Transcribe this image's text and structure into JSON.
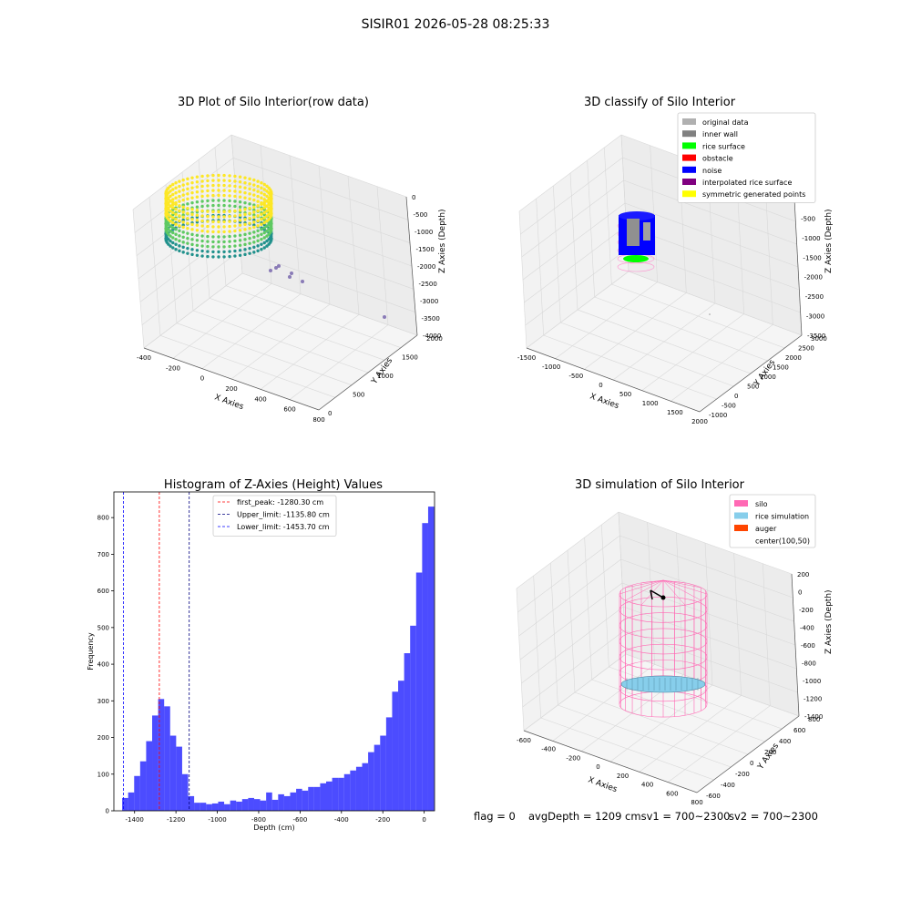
{
  "figure_title": "SISIR01 2026-05-28 08:25:33",
  "footer": {
    "flag": "flag = 0",
    "avg_depth": "avgDepth = 1209 cmsv1 = 700~2300",
    "sv2": "sv2 = 700~2300"
  },
  "chart_data": [
    {
      "type": "scatter3d",
      "title": "3D Plot of Silo Interior(row data)",
      "xlabel": "X Axies",
      "ylabel": "Y Axies",
      "zlabel": "Z Axies (Depth)",
      "x_ticks": [
        "-400",
        "-200",
        "0",
        "200",
        "400",
        "600",
        "800"
      ],
      "y_ticks": [
        "0",
        "500",
        "1000",
        "1500",
        "2000"
      ],
      "z_ticks": [
        "0",
        "-500",
        "-1000",
        "-1500",
        "-2000",
        "-2500",
        "-3000",
        "-3500",
        "-4000"
      ],
      "colormap": [
        "#440154",
        "#21918c",
        "#5ec962",
        "#fde725"
      ],
      "description_series": "ring of points colored by depth (viridis), plus sparse outlier points"
    },
    {
      "type": "scatter3d",
      "title": "3D classify of Silo Interior",
      "xlabel": "X Axies",
      "ylabel": "Y Axies",
      "zlabel": "Z Axies (Depth)",
      "x_ticks": [
        "-1500",
        "-1000",
        "-500",
        "0",
        "500",
        "1000",
        "1500",
        "2000"
      ],
      "y_ticks": [
        "-1000",
        "-500",
        "0",
        "500",
        "1000",
        "1500",
        "2000",
        "2500",
        "3000"
      ],
      "z_ticks": [
        "0",
        "-500",
        "-1000",
        "-1500",
        "-2000",
        "-2500",
        "-3000",
        "-3500"
      ],
      "legend": [
        {
          "label": "original data",
          "color": "#b0b0b0"
        },
        {
          "label": "inner wall",
          "color": "#808080"
        },
        {
          "label": "rice surface",
          "color": "#00ff00"
        },
        {
          "label": "obstacle",
          "color": "#ff0000"
        },
        {
          "label": "noise",
          "color": "#0000ff"
        },
        {
          "label": "interpolated rice surface",
          "color": "#800080"
        },
        {
          "label": "symmetric generated points",
          "color": "#ffff00"
        }
      ],
      "legend_position": "top-right"
    },
    {
      "type": "bar",
      "title": "Histogram of Z-Axies (Height) Values",
      "xlabel": "Depth (cm)",
      "ylabel": "Frequency",
      "xlim": [
        -1500,
        50
      ],
      "ylim": [
        0,
        870
      ],
      "x_ticks": [
        -1400,
        -1200,
        -1000,
        -800,
        -600,
        -400,
        -200,
        0
      ],
      "y_ticks": [
        0,
        100,
        200,
        300,
        400,
        500,
        600,
        700,
        800
      ],
      "bin_width": 29,
      "bin_start": -1460,
      "values": [
        35,
        50,
        95,
        135,
        190,
        260,
        305,
        285,
        205,
        175,
        100,
        40,
        22,
        22,
        18,
        20,
        25,
        18,
        28,
        25,
        32,
        35,
        32,
        28,
        50,
        30,
        45,
        40,
        50,
        60,
        55,
        65,
        65,
        75,
        80,
        90,
        90,
        100,
        110,
        120,
        130,
        160,
        180,
        205,
        255,
        325,
        355,
        430,
        505,
        650,
        785,
        830
      ],
      "color": "#0000ff",
      "vlines": [
        {
          "label": "first_peak: -1280.30 cm",
          "x": -1280.3,
          "color": "#ff0000"
        },
        {
          "label": "Upper_limit: -1135.80 cm",
          "x": -1135.8,
          "color": "#000080"
        },
        {
          "label": "Lower_limit: -1453.70 cm",
          "x": -1453.7,
          "color": "#0000ff"
        }
      ],
      "legend_position": "top-center"
    },
    {
      "type": "surface3d",
      "title": "3D simulation of Silo Interior",
      "xlabel": "X Axies",
      "ylabel": "Y Axies",
      "zlabel": "Z Axies (Depth)",
      "x_ticks": [
        "-600",
        "-400",
        "-200",
        "0",
        "200",
        "400",
        "600",
        "800"
      ],
      "y_ticks": [
        "-600",
        "-400",
        "-200",
        "0",
        "200",
        "400",
        "600",
        "800"
      ],
      "z_ticks": [
        "200",
        "0",
        "-200",
        "-400",
        "-600",
        "-800",
        "-1000",
        "-1200",
        "-1400"
      ],
      "legend": [
        {
          "label": "silo",
          "color": "#ff69b4"
        },
        {
          "label": "rice simulation",
          "color": "#87ceeb"
        },
        {
          "label": "auger",
          "color": "#ff4500"
        },
        {
          "label": "center(100,50)",
          "color": ""
        }
      ],
      "legend_position": "top-right"
    }
  ]
}
